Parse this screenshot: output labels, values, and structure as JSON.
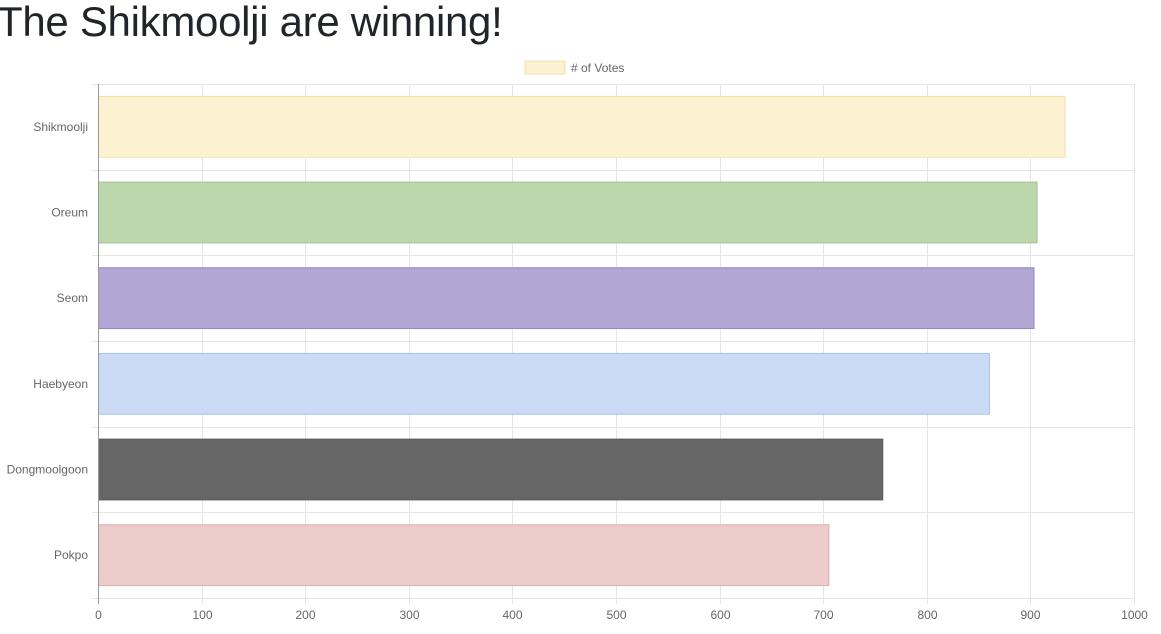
{
  "page": {
    "heading": "The Shikmoolji are winning!"
  },
  "chart_data": {
    "type": "bar",
    "orientation": "horizontal",
    "title": "",
    "xlabel": "",
    "ylabel": "",
    "categories": [
      "Shikmoolji",
      "Oreum",
      "Seom",
      "Haebyeon",
      "Dongmoolgoon",
      "Pokpo"
    ],
    "series": [
      {
        "name": "# of Votes",
        "values": [
          933,
          906,
          903,
          860,
          757,
          705
        ],
        "fill_colors": [
          "#fcf2d1",
          "#bdd7ad",
          "#b1a6d4",
          "#cbdaf5",
          "#666666",
          "#ecccca"
        ],
        "border_colors": [
          "#efe0a7",
          "#a6c493",
          "#9485c0",
          "#a9c1ee",
          "#5c5c5c",
          "#dbb0ad"
        ]
      }
    ],
    "xlim": [
      0,
      1000
    ],
    "x_ticks": [
      "0",
      "100",
      "200",
      "300",
      "400",
      "500",
      "600",
      "700",
      "800",
      "900",
      "1000"
    ],
    "grid": true,
    "legend": {
      "position": "top-center",
      "swatch_fill": "#fcf2d1",
      "swatch_border": "#efe0a7"
    },
    "colors": {
      "gridline": "#e5e5e5",
      "axis": "#999999",
      "tick_text": "#666666"
    }
  }
}
